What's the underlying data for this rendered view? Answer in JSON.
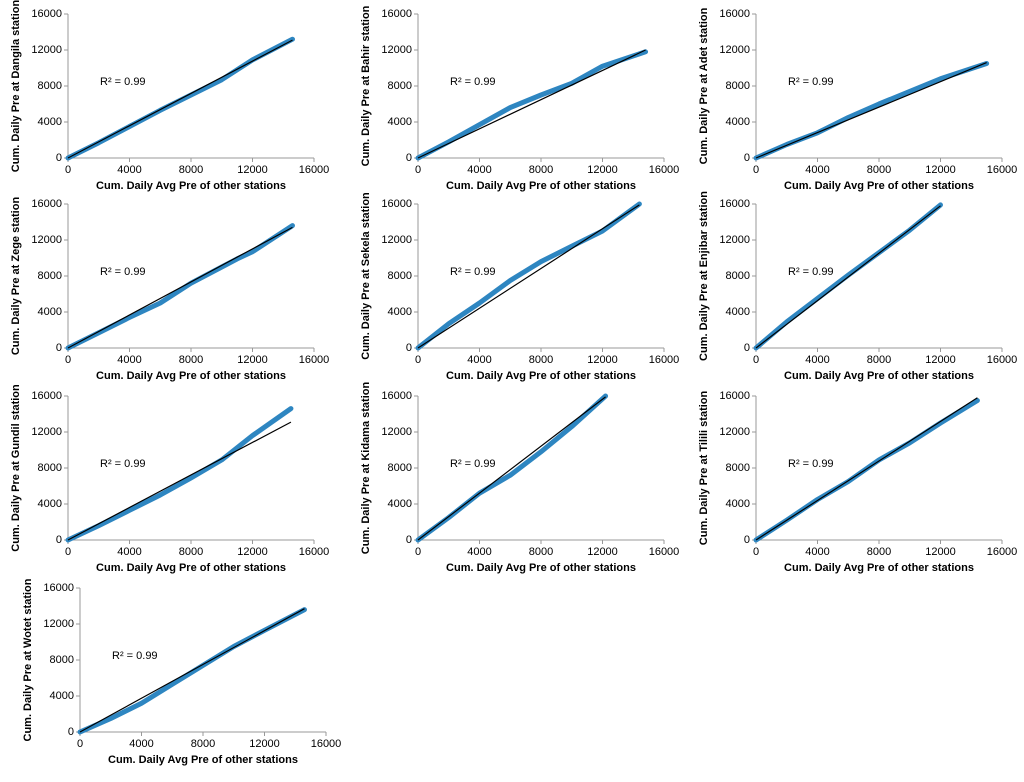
{
  "chart_data": [
    {
      "type": "line",
      "ylabel": "Cum. Daily Pre at Dangila station",
      "xlabel": "Cum. Daily Avg Pre of other stations",
      "annotation": "R² = 0.99",
      "x": [
        0,
        2000,
        4000,
        6000,
        8000,
        10000,
        12000,
        14600
      ],
      "values": [
        0,
        1700,
        3500,
        5300,
        7000,
        8700,
        10900,
        13200
      ],
      "color": "#2e86c1",
      "trendline": {
        "x": [
          0,
          14600
        ],
        "values": [
          0,
          13100
        ],
        "color": "#000000"
      },
      "xlim": [
        0,
        16000
      ],
      "ylim": [
        0,
        16000
      ],
      "xticks": [
        0,
        4000,
        8000,
        12000,
        16000
      ],
      "yticks": [
        0,
        4000,
        8000,
        12000,
        16000
      ]
    },
    {
      "type": "line",
      "ylabel": "Cum. Daily Pre at Bahir station",
      "xlabel": "Cum. Daily Avg Pre of other stations",
      "annotation": "R² = 0.99",
      "x": [
        0,
        2000,
        4000,
        6000,
        8000,
        10000,
        12000,
        14800
      ],
      "values": [
        0,
        1800,
        3700,
        5600,
        7000,
        8300,
        10200,
        11800
      ],
      "color": "#2e86c1",
      "trendline": {
        "x": [
          0,
          14800
        ],
        "values": [
          0,
          12000
        ],
        "color": "#000000"
      },
      "xlim": [
        0,
        16000
      ],
      "ylim": [
        0,
        16000
      ],
      "xticks": [
        0,
        4000,
        8000,
        12000,
        16000
      ],
      "yticks": [
        0,
        4000,
        8000,
        12000,
        16000
      ]
    },
    {
      "type": "line",
      "ylabel": "Cum. Daily Pre at Adet station",
      "xlabel": "Cum. Daily Avg Pre of other stations",
      "annotation": "R² = 0.99",
      "x": [
        0,
        2000,
        4000,
        6000,
        8000,
        10000,
        12000,
        15000
      ],
      "values": [
        0,
        1500,
        2800,
        4500,
        6000,
        7400,
        8800,
        10500
      ],
      "color": "#2e86c1",
      "trendline": {
        "x": [
          0,
          15000
        ],
        "values": [
          0,
          10600
        ],
        "color": "#000000"
      },
      "xlim": [
        0,
        16000
      ],
      "ylim": [
        0,
        16000
      ],
      "xticks": [
        0,
        4000,
        8000,
        12000,
        16000
      ],
      "yticks": [
        0,
        4000,
        8000,
        12000,
        16000
      ]
    },
    {
      "type": "line",
      "ylabel": "Cum. Daily Pre at Zege station",
      "xlabel": "Cum. Daily Avg Pre of other stations",
      "annotation": "R² = 0.99",
      "x": [
        0,
        2000,
        4000,
        6000,
        8000,
        10000,
        11000,
        12000,
        14600
      ],
      "values": [
        0,
        1700,
        3400,
        5000,
        7200,
        9000,
        9900,
        10700,
        13600
      ],
      "color": "#2e86c1",
      "trendline": {
        "x": [
          0,
          14600
        ],
        "values": [
          0,
          13400
        ],
        "color": "#000000"
      },
      "xlim": [
        0,
        16000
      ],
      "ylim": [
        0,
        16000
      ],
      "xticks": [
        0,
        4000,
        8000,
        12000,
        16000
      ],
      "yticks": [
        0,
        4000,
        8000,
        12000,
        16000
      ]
    },
    {
      "type": "line",
      "ylabel": "Cum. Daily Pre at Sekela station",
      "xlabel": "Cum. Daily Avg Pre of other stations",
      "annotation": "R² = 0.99",
      "x": [
        0,
        2000,
        4000,
        6000,
        8000,
        10000,
        12000,
        14400
      ],
      "values": [
        0,
        2700,
        5000,
        7500,
        9600,
        11300,
        13000,
        16000
      ],
      "color": "#2e86c1",
      "trendline": {
        "x": [
          0,
          14400
        ],
        "values": [
          0,
          15900
        ],
        "color": "#000000"
      },
      "xlim": [
        0,
        16000
      ],
      "ylim": [
        0,
        16000
      ],
      "xticks": [
        0,
        4000,
        8000,
        12000,
        16000
      ],
      "yticks": [
        0,
        4000,
        8000,
        12000,
        16000
      ]
    },
    {
      "type": "line",
      "ylabel": "Cum. Daily Pre at Enjibar station",
      "xlabel": "Cum. Daily Avg Pre of other stations",
      "annotation": "R² = 0.99",
      "x": [
        0,
        2000,
        4000,
        6000,
        8000,
        10000,
        12000
      ],
      "values": [
        0,
        2900,
        5500,
        8100,
        10600,
        13100,
        15900
      ],
      "color": "#2e86c1",
      "trendline": {
        "x": [
          0,
          12000
        ],
        "values": [
          0,
          15800
        ],
        "color": "#000000"
      },
      "xlim": [
        0,
        16000
      ],
      "ylim": [
        0,
        16000
      ],
      "xticks": [
        0,
        4000,
        8000,
        12000,
        16000
      ],
      "yticks": [
        0,
        4000,
        8000,
        12000,
        16000
      ]
    },
    {
      "type": "line",
      "ylabel": "Cum. Daily Pre at Gundil station",
      "xlabel": "Cum. Daily Avg Pre of other stations",
      "annotation": "R² = 0.99",
      "x": [
        0,
        2000,
        4000,
        6000,
        8000,
        10000,
        12000,
        14500
      ],
      "values": [
        0,
        1600,
        3300,
        5000,
        6900,
        8900,
        11600,
        14600
      ],
      "color": "#2e86c1",
      "trendline": {
        "x": [
          0,
          14500
        ],
        "values": [
          0,
          13100
        ],
        "color": "#000000"
      },
      "xlim": [
        0,
        16000
      ],
      "ylim": [
        0,
        16000
      ],
      "xticks": [
        0,
        4000,
        8000,
        12000,
        16000
      ],
      "yticks": [
        0,
        4000,
        8000,
        12000,
        16000
      ]
    },
    {
      "type": "line",
      "ylabel": "Cum. Daily Pre at Kidama station",
      "xlabel": "Cum. Daily Avg Pre of other stations",
      "annotation": "R² = 0.99",
      "x": [
        0,
        2000,
        4000,
        6000,
        8000,
        10000,
        12200
      ],
      "values": [
        0,
        2500,
        5200,
        7200,
        9800,
        12600,
        16000
      ],
      "color": "#2e86c1",
      "trendline": {
        "x": [
          0,
          12200
        ],
        "values": [
          0,
          15900
        ],
        "color": "#000000"
      },
      "xlim": [
        0,
        16000
      ],
      "ylim": [
        0,
        16000
      ],
      "xticks": [
        0,
        4000,
        8000,
        12000,
        16000
      ],
      "yticks": [
        0,
        4000,
        8000,
        12000,
        16000
      ]
    },
    {
      "type": "line",
      "ylabel": "Cum. Daily Pre at Tilili station",
      "xlabel": "Cum. Daily Avg Pre of other stations",
      "annotation": "R² = 0.99",
      "x": [
        0,
        2000,
        4000,
        6000,
        8000,
        10000,
        12000,
        14400
      ],
      "values": [
        0,
        2200,
        4500,
        6500,
        8900,
        10800,
        13000,
        15500
      ],
      "color": "#2e86c1",
      "trendline": {
        "x": [
          0,
          14400
        ],
        "values": [
          0,
          15800
        ],
        "color": "#000000"
      },
      "xlim": [
        0,
        16000
      ],
      "ylim": [
        0,
        16000
      ],
      "xticks": [
        0,
        4000,
        8000,
        12000,
        16000
      ],
      "yticks": [
        0,
        4000,
        8000,
        12000,
        16000
      ]
    },
    {
      "type": "line",
      "ylabel": "Cum. Daily Pre at Wotet station",
      "xlabel": "Cum. Daily Avg Pre of other stations",
      "annotation": "R² = 0.99",
      "x": [
        0,
        2000,
        4000,
        6000,
        8000,
        10000,
        12000,
        14600
      ],
      "values": [
        0,
        1500,
        3200,
        5300,
        7400,
        9500,
        11300,
        13600
      ],
      "color": "#2e86c1",
      "trendline": {
        "x": [
          0,
          14600
        ],
        "values": [
          0,
          13700
        ],
        "color": "#000000"
      },
      "xlim": [
        0,
        16000
      ],
      "ylim": [
        0,
        16000
      ],
      "xticks": [
        0,
        4000,
        8000,
        12000,
        16000
      ],
      "yticks": [
        0,
        4000,
        8000,
        12000,
        16000
      ]
    }
  ]
}
